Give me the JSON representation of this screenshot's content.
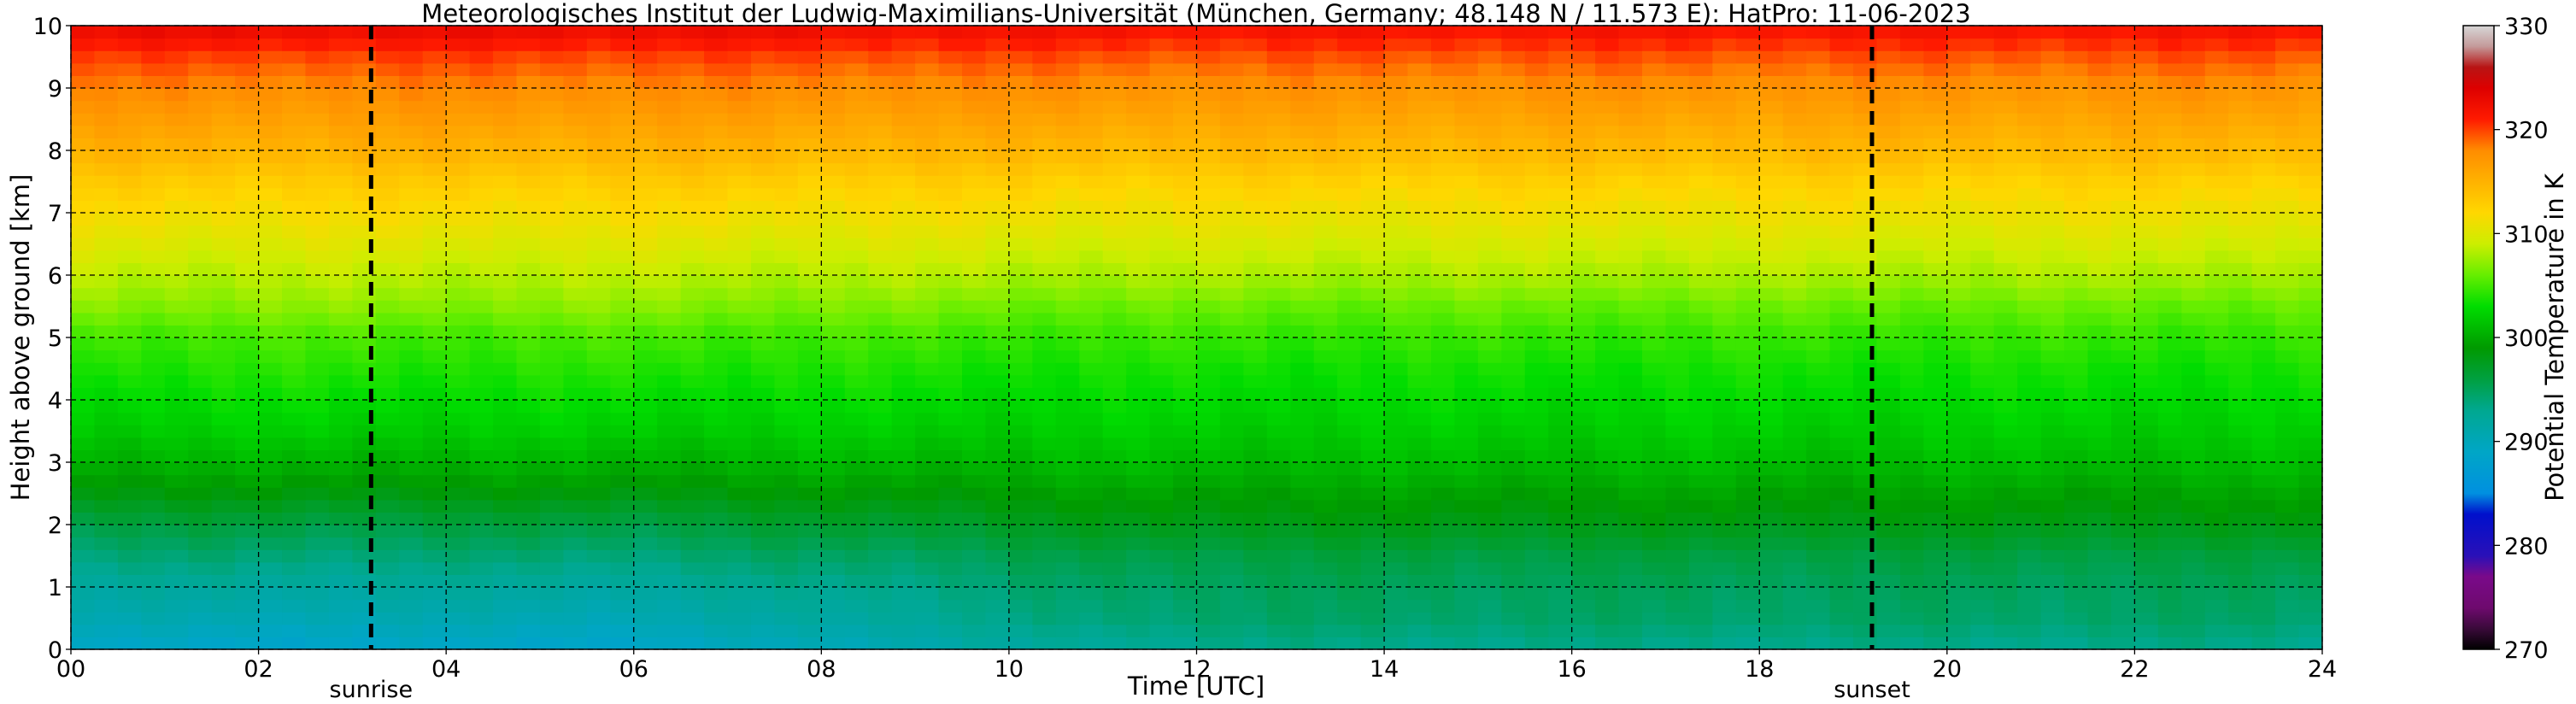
{
  "chart_data": {
    "type": "heatmap",
    "title": "Meteorologisches Institut der Ludwig-Maximilians-Universität (München, Germany; 48.148 N / 11.573 E):    HatPro: 11-06-2023",
    "xlabel": "Time [UTC]",
    "ylabel": "Height above ground [km]",
    "x_ticks": [
      "00",
      "02",
      "04",
      "06",
      "08",
      "10",
      "12",
      "14",
      "16",
      "18",
      "20",
      "22",
      "24"
    ],
    "y_ticks": [
      "0",
      "1",
      "2",
      "3",
      "4",
      "5",
      "6",
      "7",
      "8",
      "9",
      "10"
    ],
    "xlim": [
      0,
      24
    ],
    "ylim": [
      0,
      10
    ],
    "grid": true,
    "colorbar": {
      "label": "Potential Temperature in K",
      "min": 270,
      "max": 330,
      "ticks": [
        "270",
        "280",
        "290",
        "300",
        "310",
        "320",
        "330"
      ],
      "stops": [
        {
          "value": 270,
          "color": "#000000"
        },
        {
          "value": 272,
          "color": "#3a0a3a"
        },
        {
          "value": 274,
          "color": "#6e0a6e"
        },
        {
          "value": 277,
          "color": "#7a0a8a"
        },
        {
          "value": 279,
          "color": "#2a10b8"
        },
        {
          "value": 283,
          "color": "#0010cc"
        },
        {
          "value": 285,
          "color": "#0090e0"
        },
        {
          "value": 289,
          "color": "#00a6c6"
        },
        {
          "value": 293,
          "color": "#00a890"
        },
        {
          "value": 296,
          "color": "#00a040"
        },
        {
          "value": 299,
          "color": "#009a00"
        },
        {
          "value": 303,
          "color": "#00dd00"
        },
        {
          "value": 306,
          "color": "#66ee00"
        },
        {
          "value": 309,
          "color": "#ccee00"
        },
        {
          "value": 312,
          "color": "#ffd700"
        },
        {
          "value": 315,
          "color": "#ffb200"
        },
        {
          "value": 318,
          "color": "#ff8c00"
        },
        {
          "value": 321,
          "color": "#ff1a00"
        },
        {
          "value": 324,
          "color": "#dd0000"
        },
        {
          "value": 326,
          "color": "#b81414"
        },
        {
          "value": 328,
          "color": "#c49a9a"
        },
        {
          "value": 330,
          "color": "#d7d7d7"
        }
      ]
    },
    "profile_by_height_km": [
      {
        "h": 0.0,
        "morning": 288.5,
        "afternoon": 293.0
      },
      {
        "h": 0.5,
        "morning": 290.5,
        "afternoon": 294.5
      },
      {
        "h": 1.0,
        "morning": 292.0,
        "afternoon": 295.0
      },
      {
        "h": 1.5,
        "morning": 294.0,
        "afternoon": 296.0
      },
      {
        "h": 2.0,
        "morning": 296.0,
        "afternoon": 298.0
      },
      {
        "h": 2.5,
        "morning": 298.5,
        "afternoon": 299.5
      },
      {
        "h": 3.0,
        "morning": 300.5,
        "afternoon": 301.0
      },
      {
        "h": 3.5,
        "morning": 302.0,
        "afternoon": 302.0
      },
      {
        "h": 4.0,
        "morning": 303.0,
        "afternoon": 302.8
      },
      {
        "h": 4.5,
        "morning": 304.0,
        "afternoon": 303.5
      },
      {
        "h": 5.0,
        "morning": 305.0,
        "afternoon": 304.5
      },
      {
        "h": 5.5,
        "morning": 307.0,
        "afternoon": 306.0
      },
      {
        "h": 6.0,
        "morning": 308.5,
        "afternoon": 308.0
      },
      {
        "h": 6.5,
        "morning": 310.0,
        "afternoon": 309.5
      },
      {
        "h": 7.0,
        "morning": 311.5,
        "afternoon": 311.0
      },
      {
        "h": 7.5,
        "morning": 313.0,
        "afternoon": 312.5
      },
      {
        "h": 8.0,
        "morning": 315.0,
        "afternoon": 314.5
      },
      {
        "h": 8.5,
        "morning": 316.5,
        "afternoon": 316.0
      },
      {
        "h": 9.0,
        "morning": 318.0,
        "afternoon": 317.5
      },
      {
        "h": 9.5,
        "morning": 320.0,
        "afternoon": 319.5
      },
      {
        "h": 10.0,
        "morning": 323.0,
        "afternoon": 322.0
      }
    ],
    "annotations": [
      {
        "label": "sunrise",
        "x": 3.2
      },
      {
        "label": "sunset",
        "x": 19.2
      }
    ]
  }
}
